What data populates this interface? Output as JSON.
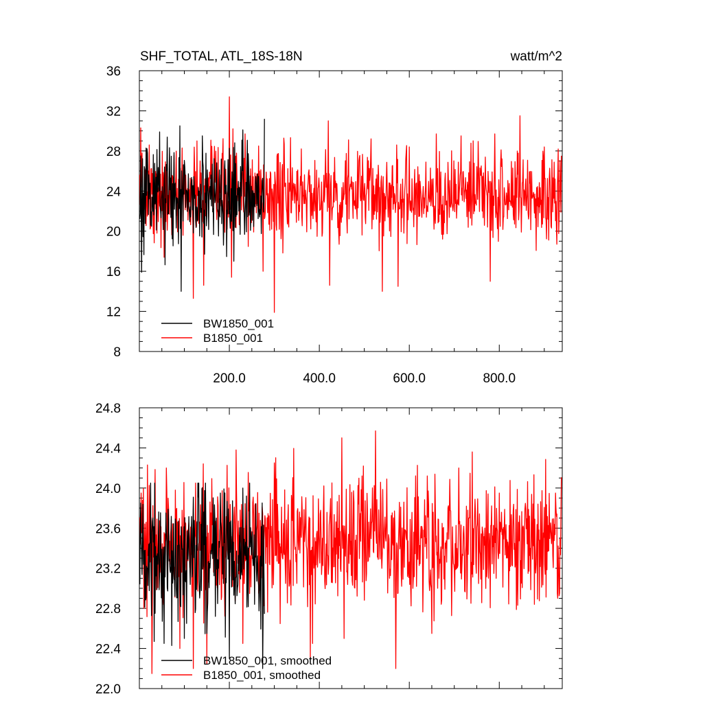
{
  "chart_data": [
    {
      "type": "line",
      "title": "SHF_TOTAL, ATL_18S-18N",
      "units": "watt/m^2",
      "xlim": [
        0,
        940
      ],
      "ylim": [
        8,
        36
      ],
      "yticks": [
        "8",
        "12",
        "16",
        "20",
        "24",
        "28",
        "32",
        "36"
      ],
      "xticks": [
        "200.0",
        "400.0",
        "600.0",
        "800.0"
      ],
      "legend_position": "bottom-left",
      "series": [
        {
          "name": "B1850_001",
          "color": "#ff0000",
          "n": 938,
          "mean": 23.6,
          "sd": 2.1,
          "min": 11.9,
          "max": 33.4,
          "x": [
            1,
            938
          ],
          "spikes": [
            [
              3,
              30.3
            ],
            [
              6,
              27.8
            ],
            [
              22,
              28.6
            ],
            [
              55,
              17.4
            ],
            [
              95,
              28.3
            ],
            [
              120,
              13.3
            ],
            [
              128,
              29.0
            ],
            [
              143,
              14.6
            ],
            [
              200,
              33.4
            ],
            [
              205,
              15.4
            ],
            [
              208,
              30.2
            ],
            [
              235,
              29.7
            ],
            [
              265,
              28.5
            ],
            [
              275,
              16.0
            ],
            [
              300,
              11.9
            ],
            [
              307,
              27.7
            ],
            [
              360,
              28.2
            ],
            [
              420,
              31.0
            ],
            [
              423,
              14.6
            ],
            [
              465,
              29.1
            ],
            [
              515,
              29.2
            ],
            [
              540,
              14.0
            ],
            [
              572,
              28.6
            ],
            [
              575,
              14.5
            ],
            [
              600,
              28.4
            ],
            [
              660,
              29.7
            ],
            [
              715,
              29.5
            ],
            [
              780,
              15.0
            ],
            [
              790,
              29.7
            ],
            [
              846,
              31.5
            ],
            [
              900,
              28.4
            ],
            [
              928,
              18.7
            ]
          ]
        },
        {
          "name": "BW1850_001",
          "color": "#000000",
          "n": 278,
          "mean": 23.4,
          "sd": 2.3,
          "min": 14.0,
          "max": 31.2,
          "x": [
            1,
            278
          ],
          "spikes": [
            [
              5,
              15.9
            ],
            [
              45,
              29.9
            ],
            [
              90,
              30.5
            ],
            [
              93,
              14.0
            ],
            [
              140,
              29.5
            ],
            [
              145,
              17.7
            ],
            [
              210,
              17.0
            ],
            [
              230,
              30.1
            ],
            [
              278,
              31.2
            ]
          ]
        }
      ]
    },
    {
      "type": "line",
      "xlim": [
        0,
        940
      ],
      "ylim": [
        22.0,
        24.8
      ],
      "yticks": [
        "22.0",
        "22.4",
        "22.8",
        "23.2",
        "23.6",
        "24.0",
        "24.4",
        "24.8"
      ],
      "legend_position": "bottom-left",
      "series": [
        {
          "name": "B1850_001, smoothed",
          "color": "#ff0000",
          "n": 938,
          "mean": 23.45,
          "sd": 0.3,
          "min": 22.15,
          "max": 24.57,
          "x": [
            1,
            938
          ],
          "spikes": [
            [
              4,
              23.95
            ],
            [
              10,
              22.8
            ],
            [
              18,
              24.23
            ],
            [
              28,
              22.15
            ],
            [
              60,
              24.2
            ],
            [
              90,
              22.4
            ],
            [
              120,
              22.2
            ],
            [
              125,
              24.05
            ],
            [
              150,
              22.25
            ],
            [
              215,
              24.38
            ],
            [
              230,
              22.45
            ],
            [
              300,
              24.25
            ],
            [
              380,
              22.3
            ],
            [
              385,
              22.45
            ],
            [
              450,
              24.5
            ],
            [
              455,
              22.5
            ],
            [
              495,
              24.12
            ],
            [
              525,
              24.57
            ],
            [
              570,
              22.2
            ],
            [
              640,
              24.12
            ],
            [
              650,
              22.7
            ],
            [
              650,
              22.55
            ],
            [
              710,
              24.2
            ],
            [
              737,
              22.85
            ],
            [
              800,
              23.95
            ],
            [
              925,
              23.95
            ],
            [
              929,
              22.95
            ]
          ]
        },
        {
          "name": "BW1850_001, smoothed",
          "color": "#000000",
          "n": 278,
          "mean": 23.3,
          "sd": 0.35,
          "min": 22.2,
          "max": 24.05,
          "x": [
            1,
            278
          ],
          "spikes": [
            [
              3,
              23.85
            ],
            [
              35,
              22.75
            ],
            [
              55,
              22.45
            ],
            [
              100,
              22.5
            ],
            [
              130,
              24.05
            ],
            [
              150,
              22.55
            ],
            [
              180,
              23.95
            ],
            [
              200,
              22.3
            ],
            [
              230,
              24.0
            ],
            [
              274,
              22.2
            ]
          ]
        }
      ]
    }
  ]
}
